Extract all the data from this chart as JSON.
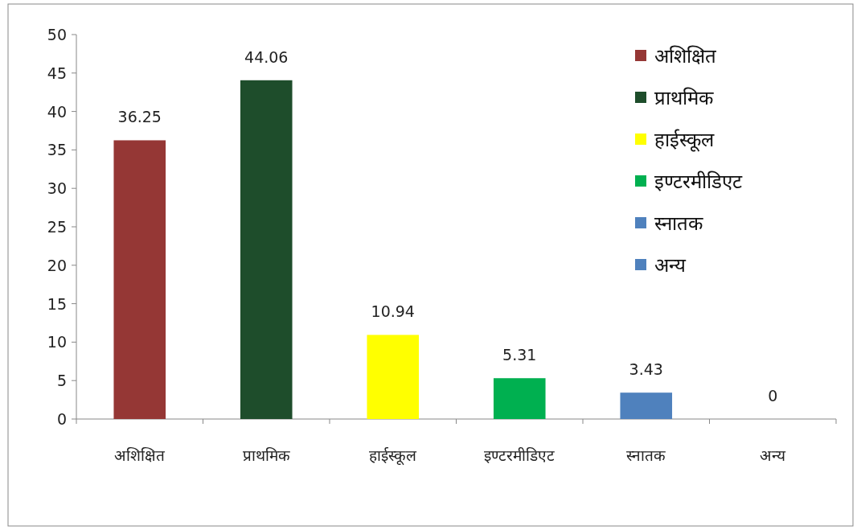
{
  "chart_data": {
    "type": "bar",
    "categories": [
      "अशिक्षित",
      "प्राथमिक",
      "हाईस्कूल",
      "इण्टरमीडिएट",
      "स्नातक",
      "अन्य"
    ],
    "series": [
      {
        "name": "अशिक्षित",
        "color": "#953735",
        "values": [
          36.25,
          null,
          null,
          null,
          null,
          null
        ]
      },
      {
        "name": "प्राथमिक",
        "color": "#1e4d2b",
        "values": [
          null,
          44.06,
          null,
          null,
          null,
          null
        ]
      },
      {
        "name": "हाईस्कूल",
        "color": "#ffff00",
        "values": [
          null,
          null,
          10.94,
          null,
          null,
          null
        ]
      },
      {
        "name": "इण्टरमीडिएट",
        "color": "#00b050",
        "values": [
          null,
          null,
          null,
          5.31,
          null,
          null
        ]
      },
      {
        "name": "स्नातक",
        "color": "#4f81bd",
        "values": [
          null,
          null,
          null,
          null,
          3.43,
          null
        ]
      },
      {
        "name": "अन्य",
        "color": "#4f81bd",
        "values": [
          null,
          null,
          null,
          null,
          null,
          0
        ]
      }
    ],
    "ylim": [
      0,
      50
    ],
    "yticks": [
      0,
      5,
      10,
      15,
      20,
      25,
      30,
      35,
      40,
      45,
      50
    ],
    "data_labels": true,
    "legend": "top right",
    "grid": false
  }
}
